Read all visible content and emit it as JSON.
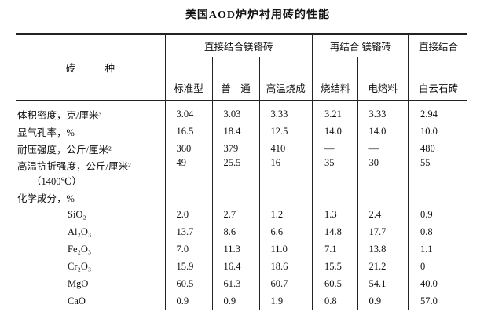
{
  "title": "美国AOD炉炉衬用砖的性能",
  "table": {
    "corner": "砖　　　种",
    "groups": [
      {
        "name": "直接结合镁铬砖",
        "columns": [
          "标准型",
          "普　通",
          "高温烧成"
        ]
      },
      {
        "name": "再结合 镁铬砖",
        "columns": [
          "烧结料",
          "电熔料"
        ]
      },
      {
        "name": "直接结合",
        "columns": [
          "白云石砖"
        ]
      }
    ],
    "rows": [
      {
        "label": "体积密度，克/厘米³",
        "values": [
          "3.04",
          "3.03",
          "3.33",
          "3.21",
          "3.33",
          "2.94"
        ]
      },
      {
        "label": "显气孔率，%",
        "values": [
          "16.5",
          "18.4",
          "12.5",
          "14.0",
          "14.0",
          "10.0"
        ]
      },
      {
        "label": "耐压强度，公斤/厘米²",
        "values": [
          "360",
          "379",
          "410",
          "—",
          "—",
          "480"
        ]
      },
      {
        "label": "高温抗折强度，公斤/厘米²",
        "note": "（1400℃）",
        "values": [
          "49",
          "25.5",
          "16",
          "35",
          "30",
          "55"
        ]
      },
      {
        "label": "化学成分，%"
      },
      {
        "label": "SiO₂",
        "indent": true,
        "values": [
          "2.0",
          "2.7",
          "1.2",
          "1.3",
          "2.4",
          "0.9"
        ]
      },
      {
        "label": "Al₂O₃",
        "indent": true,
        "values": [
          "13.7",
          "8.6",
          "6.6",
          "14.8",
          "17.7",
          "0.8"
        ]
      },
      {
        "label": "Fe₂O₃",
        "indent": true,
        "values": [
          "7.0",
          "11.3",
          "11.0",
          "7.1",
          "13.8",
          "1.1"
        ]
      },
      {
        "label": "Cr₂O₃",
        "indent": true,
        "values": [
          "15.9",
          "16.4",
          "18.6",
          "15.5",
          "21.2",
          "0"
        ]
      },
      {
        "label": "MgO",
        "indent": true,
        "values": [
          "60.5",
          "61.3",
          "60.7",
          "60.5",
          "54.1",
          "40.0"
        ]
      },
      {
        "label": "CaO",
        "indent": true,
        "values": [
          "0.9",
          "0.9",
          "1.9",
          "0.8",
          "0.9",
          "57.0"
        ]
      }
    ]
  }
}
